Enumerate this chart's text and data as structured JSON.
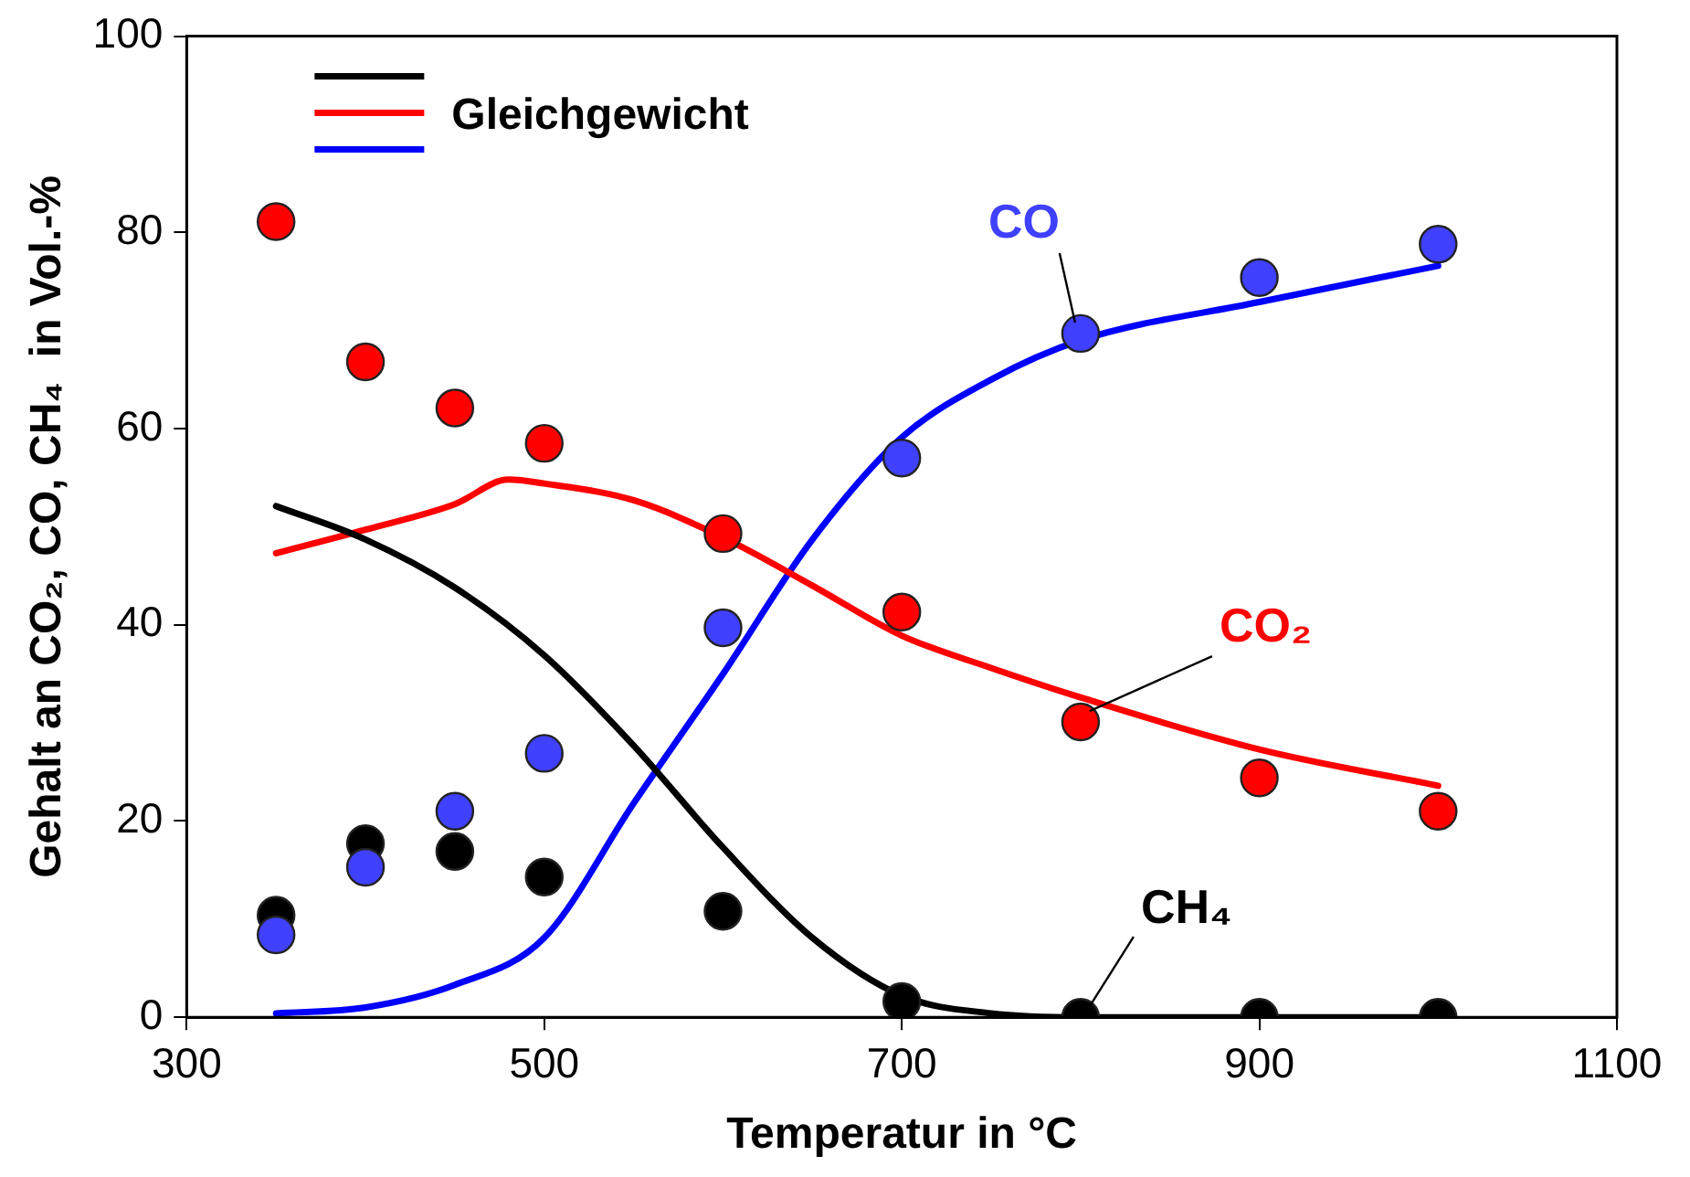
{
  "chart_data": {
    "type": "line",
    "xlabel": "Temperatur in °C",
    "ylabel": "Gehalt an CO₂, CO, CH₄  in Vol.-%",
    "xlim": [
      300,
      1100
    ],
    "xticks": [
      300,
      500,
      700,
      900,
      1100
    ],
    "ylim": [
      0,
      100
    ],
    "yticks": [
      0,
      20,
      40,
      60,
      80,
      100
    ],
    "grid": false,
    "legend": "top left",
    "series": [
      {
        "color": "#000000",
        "marker": "none",
        "x": [
          350,
          400,
          450,
          500,
          550,
          600,
          650,
          700,
          750,
          800,
          900,
          1000
        ],
        "values": [
          52.1,
          48.7,
          43.8,
          36.9,
          27.7,
          17.3,
          8.1,
          2.2,
          0.4,
          0,
          0,
          0
        ]
      },
      {
        "name": "Gleichgewicht",
        "color": "#ff0000",
        "marker": "none",
        "x": [
          350,
          400,
          450,
          480,
          500,
          550,
          600,
          650,
          700,
          750,
          800,
          900,
          1000
        ],
        "values": [
          47.3,
          49.7,
          52.3,
          54.8,
          54.4,
          52.7,
          48.9,
          44.0,
          38.9,
          35.6,
          32.6,
          27.3,
          23.6
        ]
      },
      {
        "color": "#0000ff",
        "marker": "none",
        "x": [
          350,
          400,
          450,
          500,
          550,
          600,
          650,
          700,
          750,
          800,
          900,
          1000
        ],
        "values": [
          0.4,
          1.0,
          3.3,
          8.1,
          21.8,
          35.0,
          48.7,
          59.1,
          65.0,
          69.0,
          72.9,
          76.6
        ]
      },
      {
        "type": "scatter",
        "name": "CO₂",
        "color": "#ff0000",
        "marker": "circle",
        "x": [
          350,
          400,
          450,
          500,
          600,
          700,
          800,
          900,
          1000
        ],
        "values": [
          81.1,
          66.8,
          62.1,
          58.5,
          49.3,
          41.3,
          30.1,
          24.4,
          21.0
        ]
      },
      {
        "type": "scatter",
        "name": "CO",
        "color": "#4040ff",
        "marker": "circle",
        "x": [
          350,
          400,
          450,
          500,
          600,
          700,
          800,
          900,
          1000
        ],
        "values": [
          8.4,
          15.3,
          21.0,
          26.9,
          39.7,
          57.0,
          69.7,
          75.4,
          78.8
        ]
      },
      {
        "type": "scatter",
        "name": "CH₄",
        "color": "#000000",
        "marker": "circle",
        "x": [
          350,
          400,
          450,
          500,
          600,
          700,
          800,
          900,
          1000
        ],
        "values": [
          10.4,
          17.7,
          16.9,
          14.3,
          10.8,
          1.6,
          0,
          0,
          0
        ]
      }
    ]
  }
}
